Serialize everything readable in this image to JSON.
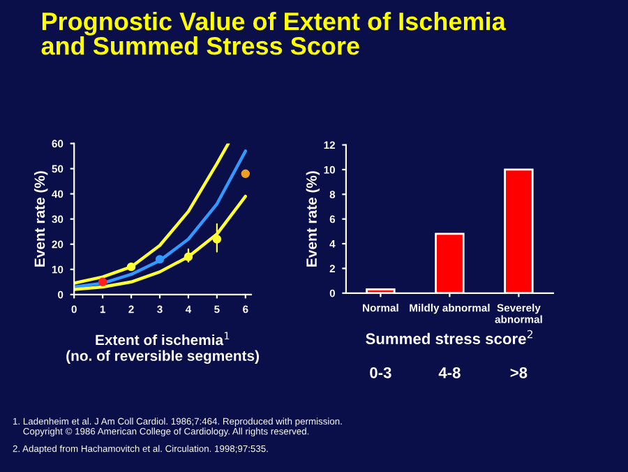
{
  "chart_data": [
    {
      "type": "line",
      "title": "Prognostic Value of Extent of Ischemia\nand Summed Stress Score",
      "xlabel": "Extent of ischemia$^{1}$\n(no. of reversible segments)",
      "ylabel": "Event rate (%)",
      "xlim": [
        0,
        6.2
      ],
      "ylim": [
        0,
        60
      ],
      "xticks": [
        0,
        1,
        2,
        3,
        4,
        5,
        6
      ],
      "yticks": [
        0,
        10,
        20,
        30,
        40,
        50,
        60
      ],
      "grid": false,
      "legend": false,
      "series": [
        {
          "type": "line",
          "color": "#ffff33",
          "x": [
            0,
            1,
            2,
            3,
            4,
            5,
            5.4
          ],
          "values": [
            4.5,
            7,
            11,
            19.5,
            33,
            52,
            60
          ]
        },
        {
          "type": "line",
          "color": "#3399ff",
          "x": [
            0,
            1,
            2,
            3,
            4,
            5,
            6
          ],
          "values": [
            3,
            4.5,
            8,
            13.5,
            22,
            36,
            57
          ]
        },
        {
          "type": "line",
          "color": "#ffff33",
          "x": [
            0,
            1,
            2,
            3,
            4,
            5,
            6
          ],
          "values": [
            2,
            3,
            5,
            9,
            15,
            24,
            39
          ]
        },
        {
          "type": "scatter",
          "marker": "circle",
          "x": [
            1,
            2,
            3,
            4,
            5,
            6
          ],
          "values": [
            5,
            11,
            14,
            15,
            22,
            48
          ],
          "colors": [
            "#ff2020",
            "#ffff33",
            "#3399ff",
            "#ffff33",
            "#ffff33",
            "#f0a020"
          ],
          "errors": [
            null,
            null,
            null,
            [
              13,
              18
            ],
            [
              17,
              28
            ],
            null
          ]
        }
      ],
      "annotations": [
        "1. Ladenheim et al. J Am Coll Cardiol. 1986;7:464. Reproduced with permission.\n    Copyright © 1986 American College of Cardiology. All rights reserved.",
        "2. Adapted from Hachamovitch et al. Circulation. 1998;97:535."
      ]
    },
    {
      "type": "bar",
      "categories": [
        "Normal",
        "Mildly abnormal",
        "Severely\nabnormal"
      ],
      "values": [
        0.3,
        4.8,
        10
      ],
      "color": "#ff0000",
      "xlabel": "Summed stress score$^{2}$",
      "ylabel": "Event rate (%)",
      "ylim": [
        0,
        12
      ],
      "yticks": [
        0,
        2,
        4,
        6,
        8,
        10,
        12
      ],
      "grid": false,
      "legend": false,
      "annotations": [
        "0-3",
        "4-8",
        ">8"
      ]
    }
  ]
}
